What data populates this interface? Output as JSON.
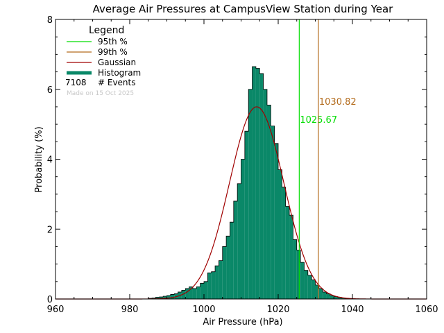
{
  "colors": {
    "histogram": "#0a8868",
    "p95": "#00dd00",
    "p99": "#b36b1c",
    "gaussian": "#a00000",
    "axis": "#000000"
  },
  "chart_data": {
    "type": "bar",
    "title": "Average Air Pressures at CampusView Station during Year",
    "xlabel": "Air Pressure (hPa)",
    "ylabel": "Probability (%)",
    "xlim": [
      960,
      1060
    ],
    "ylim": [
      0,
      8
    ],
    "x_ticks": [
      "960",
      "980",
      "1000",
      "1020",
      "1040",
      "1060"
    ],
    "y_ticks": [
      "0",
      "2",
      "4",
      "6",
      "8"
    ],
    "bin_width": 1,
    "bins": [
      [
        985,
        0.02
      ],
      [
        986,
        0.03
      ],
      [
        987,
        0.05
      ],
      [
        988,
        0.06
      ],
      [
        989,
        0.08
      ],
      [
        990,
        0.1
      ],
      [
        991,
        0.13
      ],
      [
        992,
        0.15
      ],
      [
        993,
        0.2
      ],
      [
        994,
        0.25
      ],
      [
        995,
        0.3
      ],
      [
        996,
        0.35
      ],
      [
        997,
        0.3
      ],
      [
        998,
        0.35
      ],
      [
        999,
        0.45
      ],
      [
        1000,
        0.5
      ],
      [
        1001,
        0.75
      ],
      [
        1002,
        0.78
      ],
      [
        1003,
        0.95
      ],
      [
        1004,
        1.1
      ],
      [
        1005,
        1.5
      ],
      [
        1006,
        1.8
      ],
      [
        1007,
        2.2
      ],
      [
        1008,
        2.8
      ],
      [
        1009,
        3.3
      ],
      [
        1010,
        4.0
      ],
      [
        1011,
        4.8
      ],
      [
        1012,
        6.0
      ],
      [
        1013,
        6.65
      ],
      [
        1014,
        6.6
      ],
      [
        1015,
        6.45
      ],
      [
        1016,
        6.0
      ],
      [
        1017,
        5.55
      ],
      [
        1018,
        4.95
      ],
      [
        1019,
        4.45
      ],
      [
        1020,
        3.7
      ],
      [
        1021,
        3.2
      ],
      [
        1022,
        2.65
      ],
      [
        1023,
        2.4
      ],
      [
        1024,
        1.7
      ],
      [
        1025,
        1.4
      ],
      [
        1026,
        1.05
      ],
      [
        1027,
        0.82
      ],
      [
        1028,
        0.68
      ],
      [
        1029,
        0.55
      ],
      [
        1030,
        0.4
      ],
      [
        1031,
        0.3
      ],
      [
        1032,
        0.2
      ],
      [
        1033,
        0.15
      ],
      [
        1034,
        0.1
      ],
      [
        1035,
        0.07
      ],
      [
        1036,
        0.05
      ],
      [
        1037,
        0.03
      ],
      [
        1038,
        0.02
      ],
      [
        1039,
        0.01
      ]
    ],
    "gaussian": {
      "mean": 1014.2,
      "sigma": 7.3,
      "peak": 5.5
    },
    "percentiles": [
      {
        "name": "95th %",
        "value": 1025.67,
        "label": "1025.67",
        "color": "#00dd00"
      },
      {
        "name": "99th %",
        "value": 1030.82,
        "label": "1030.82",
        "color": "#b36b1c"
      }
    ],
    "legend": {
      "title": "Legend",
      "items": [
        {
          "label": "95th %",
          "kind": "line",
          "color": "#00dd00"
        },
        {
          "label": "99th %",
          "kind": "line",
          "color": "#b36b1c"
        },
        {
          "label": "Gaussian",
          "kind": "line",
          "color": "#a00000"
        },
        {
          "label": "Histogram",
          "kind": "thick",
          "color": "#0a8868"
        }
      ],
      "events_count": "7108",
      "events_label": "# Events",
      "placement": "top-left"
    },
    "made_on": "Made on 15 Oct 2025"
  }
}
